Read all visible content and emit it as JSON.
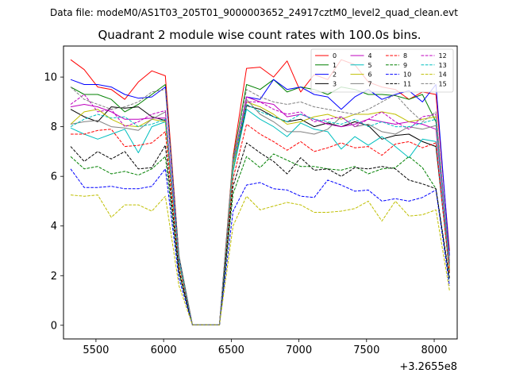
{
  "chart_data": {
    "type": "line",
    "suptitle": "Data file: modeM0/AS1T03_205T01_9000003652_24917cztM0_level2_quad_clean.evt",
    "title": "Quadrant 2 module wise count rates with 100.0s bins.",
    "x_offset_label": "+3.2655e8",
    "xlim": [
      5260,
      8170
    ],
    "ylim": [
      -0.55,
      11.25
    ],
    "xticks": [
      5500,
      6000,
      6500,
      7000,
      7500,
      8000
    ],
    "yticks": [
      0,
      2,
      4,
      6,
      8,
      10
    ],
    "legend_position": "top-right",
    "legend_columns": 4,
    "x": [
      5313,
      5413,
      5513,
      5613,
      5713,
      5813,
      5913,
      6013,
      6113,
      6213,
      6313,
      6413,
      6513,
      6613,
      6713,
      6813,
      6913,
      7013,
      7113,
      7213,
      7313,
      7413,
      7513,
      7613,
      7713,
      7813,
      7913,
      8013,
      8113
    ],
    "series": [
      {
        "name": "0",
        "color": "#ff0000",
        "dash": "solid",
        "values": [
          10.7,
          10.3,
          9.6,
          9.5,
          9.1,
          9.8,
          10.25,
          10.05,
          2.8,
          0.02,
          0.02,
          0.02,
          6.8,
          10.35,
          10.4,
          10.0,
          10.65,
          9.4,
          10.1,
          9.9,
          10.7,
          10.5,
          9.8,
          9.6,
          9.5,
          9.1,
          9.4,
          9.3,
          3.0
        ]
      },
      {
        "name": "1",
        "color": "#008000",
        "dash": "solid",
        "values": [
          9.6,
          9.3,
          9.3,
          9.1,
          8.6,
          8.9,
          9.3,
          9.7,
          2.8,
          0.02,
          0.02,
          0.02,
          6.7,
          9.7,
          9.5,
          9.9,
          9.4,
          9.6,
          9.5,
          9.3,
          9.6,
          9.5,
          9.3,
          9.3,
          9.25,
          9.1,
          9.3,
          8.2,
          2.6
        ]
      },
      {
        "name": "2",
        "color": "#0000ff",
        "dash": "solid",
        "values": [
          9.9,
          9.7,
          9.7,
          9.6,
          9.3,
          9.15,
          9.2,
          9.6,
          2.7,
          0.02,
          0.02,
          0.02,
          6.5,
          9.2,
          9.1,
          9.9,
          9.5,
          9.6,
          9.3,
          9.2,
          8.7,
          9.2,
          9.5,
          9.1,
          9.3,
          9.45,
          9.0,
          9.7,
          2.8
        ]
      },
      {
        "name": "3",
        "color": "#000000",
        "dash": "solid",
        "values": [
          8.7,
          8.4,
          8.2,
          8.8,
          8.75,
          8.8,
          8.4,
          8.25,
          2.5,
          0.02,
          0.02,
          0.02,
          6.2,
          8.85,
          8.7,
          8.4,
          8.2,
          8.3,
          8.0,
          8.15,
          8.0,
          8.2,
          8.05,
          7.5,
          7.65,
          7.7,
          7.4,
          7.2,
          2.2
        ]
      },
      {
        "name": "4",
        "color": "#bf00bf",
        "dash": "solid",
        "values": [
          8.8,
          8.9,
          8.8,
          8.6,
          8.3,
          8.3,
          8.35,
          8.35,
          2.6,
          0.02,
          0.02,
          0.02,
          6.5,
          9.2,
          9.0,
          8.9,
          8.4,
          8.5,
          8.3,
          8.1,
          8.0,
          8.1,
          8.3,
          8.2,
          8.1,
          8.2,
          8.1,
          7.9,
          2.4
        ]
      },
      {
        "name": "5",
        "color": "#00bfbf",
        "dash": "solid",
        "values": [
          7.95,
          7.7,
          7.5,
          7.7,
          7.9,
          6.95,
          8.0,
          8.2,
          2.5,
          0.02,
          0.02,
          0.02,
          6.2,
          8.7,
          8.3,
          8.0,
          7.6,
          8.15,
          7.9,
          7.8,
          7.1,
          7.6,
          7.25,
          7.6,
          7.2,
          6.75,
          7.5,
          7.4,
          2.1
        ]
      },
      {
        "name": "6",
        "color": "#bfbf00",
        "dash": "solid",
        "values": [
          8.1,
          8.6,
          8.7,
          8.3,
          8.05,
          8.0,
          8.3,
          8.2,
          2.5,
          0.02,
          0.02,
          0.02,
          6.4,
          9.0,
          8.8,
          8.5,
          8.1,
          8.2,
          8.4,
          8.5,
          8.3,
          8.5,
          8.5,
          8.6,
          8.5,
          8.2,
          8.3,
          8.4,
          2.3
        ]
      },
      {
        "name": "7",
        "color": "#808080",
        "dash": "solid",
        "values": [
          8.1,
          8.2,
          8.25,
          8.0,
          7.95,
          7.85,
          8.3,
          8.6,
          2.6,
          0.02,
          0.02,
          0.02,
          6.6,
          9.1,
          8.5,
          8.2,
          7.8,
          7.8,
          7.7,
          7.9,
          8.4,
          8.0,
          8.1,
          7.8,
          7.7,
          8.0,
          7.9,
          8.05,
          2.5
        ]
      },
      {
        "name": "8",
        "color": "#ff0000",
        "dash": "dashed",
        "values": [
          7.7,
          7.7,
          7.85,
          7.9,
          7.2,
          7.25,
          7.35,
          7.8,
          2.3,
          0.02,
          0.02,
          0.02,
          5.9,
          8.1,
          7.7,
          7.4,
          7.05,
          7.4,
          7.0,
          7.15,
          7.35,
          7.15,
          7.2,
          6.85,
          7.3,
          7.4,
          7.15,
          7.35,
          2.1
        ]
      },
      {
        "name": "9",
        "color": "#008000",
        "dash": "dashed",
        "values": [
          6.8,
          6.3,
          6.4,
          6.1,
          6.2,
          6.05,
          6.3,
          6.8,
          2.1,
          0.02,
          0.02,
          0.02,
          5.3,
          6.8,
          6.35,
          6.9,
          6.65,
          6.4,
          6.4,
          6.3,
          6.25,
          6.4,
          6.1,
          6.3,
          6.35,
          6.8,
          6.35,
          5.5,
          1.8
        ]
      },
      {
        "name": "10",
        "color": "#0000ff",
        "dash": "dashed",
        "values": [
          6.3,
          5.55,
          5.55,
          5.6,
          5.5,
          5.5,
          5.6,
          6.3,
          1.9,
          0.02,
          0.02,
          0.02,
          4.6,
          5.65,
          5.75,
          5.5,
          5.45,
          5.2,
          5.15,
          5.85,
          5.65,
          5.4,
          5.45,
          5.0,
          5.1,
          5.0,
          5.15,
          5.45,
          1.6
        ]
      },
      {
        "name": "11",
        "color": "#000000",
        "dash": "dashed",
        "values": [
          7.2,
          6.6,
          7.0,
          6.7,
          7.0,
          6.3,
          6.35,
          7.25,
          2.2,
          0.02,
          0.02,
          0.02,
          5.6,
          7.35,
          6.95,
          6.6,
          6.1,
          6.75,
          6.25,
          6.3,
          6.0,
          6.35,
          6.3,
          6.4,
          6.3,
          5.85,
          5.7,
          5.5,
          1.9
        ]
      },
      {
        "name": "12",
        "color": "#bf00bf",
        "dash": "dashed",
        "values": [
          8.9,
          9.3,
          8.6,
          8.7,
          8.0,
          8.2,
          8.5,
          8.65,
          2.6,
          0.02,
          0.02,
          0.02,
          6.6,
          9.0,
          9.0,
          8.7,
          8.5,
          8.6,
          8.2,
          8.3,
          8.4,
          8.0,
          8.3,
          8.6,
          8.2,
          7.9,
          8.4,
          8.5,
          2.5
        ]
      },
      {
        "name": "13",
        "color": "#00bfbf",
        "dash": "dashed",
        "values": [
          8.0,
          8.3,
          8.5,
          8.35,
          8.4,
          8.0,
          8.1,
          8.3,
          2.6,
          0.02,
          0.02,
          0.02,
          6.5,
          8.9,
          8.6,
          8.4,
          8.2,
          8.5,
          8.3,
          8.2,
          8.1,
          8.3,
          8.0,
          8.2,
          8.0,
          8.0,
          8.15,
          8.3,
          2.4
        ]
      },
      {
        "name": "14",
        "color": "#bfbf00",
        "dash": "dashed",
        "values": [
          5.25,
          5.2,
          5.25,
          4.35,
          4.85,
          4.85,
          4.6,
          5.2,
          1.6,
          0.02,
          0.02,
          0.02,
          4.0,
          5.2,
          4.65,
          4.8,
          4.95,
          4.85,
          4.55,
          4.55,
          4.6,
          4.7,
          5.0,
          4.2,
          5.0,
          4.4,
          4.45,
          4.65,
          1.4
        ]
      },
      {
        "name": "15",
        "color": "#808080",
        "dash": "dashed",
        "values": [
          9.6,
          9.1,
          8.9,
          8.7,
          8.8,
          9.0,
          9.4,
          9.5,
          2.8,
          0.02,
          0.02,
          0.02,
          6.7,
          9.5,
          9.2,
          9.0,
          8.9,
          9.0,
          8.8,
          8.7,
          8.6,
          8.5,
          8.7,
          9.0,
          9.3,
          8.7,
          8.2,
          8.6,
          2.6
        ]
      }
    ]
  }
}
